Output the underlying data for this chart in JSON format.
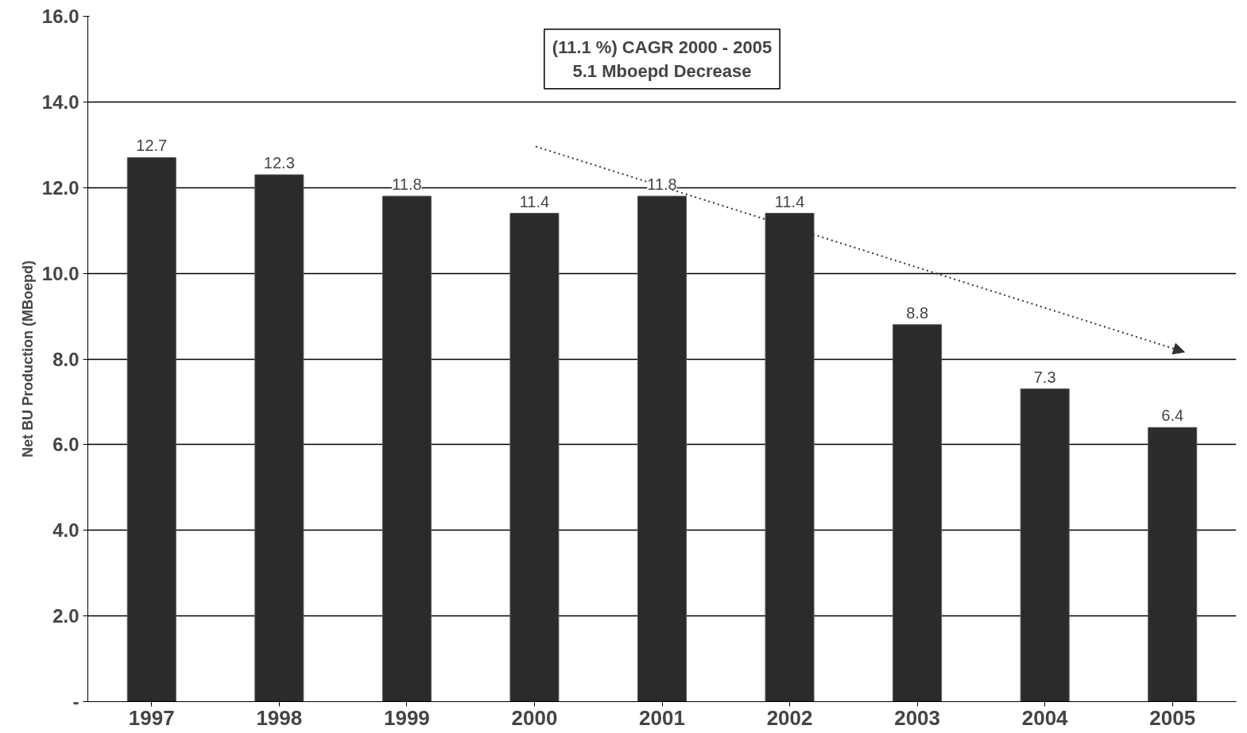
{
  "chart_data": {
    "type": "bar",
    "ylabel": "Net BU Production (MBoepd)",
    "categories": [
      "1997",
      "1998",
      "1999",
      "2000",
      "2001",
      "2002",
      "2003",
      "2004",
      "2005"
    ],
    "series": [
      {
        "color": "#2b2b2b",
        "values": [
          12.7,
          12.3,
          11.8,
          11.4,
          11.8,
          11.4,
          8.8,
          7.3,
          6.4
        ]
      }
    ],
    "annotations": [
      "(11.1 %) CAGR 2000 - 2005",
      "5.1 Mboepd Decrease"
    ],
    "ylim": [
      0,
      16
    ],
    "yticks": [
      {
        "value": 0,
        "label": "-"
      },
      {
        "value": 2,
        "label": "2.0"
      },
      {
        "value": 4,
        "label": "4.0"
      },
      {
        "value": 6,
        "label": "6.0"
      },
      {
        "value": 8,
        "label": "8.0"
      },
      {
        "value": 10,
        "label": "10.0"
      },
      {
        "value": 12,
        "label": "12.0"
      },
      {
        "value": 14,
        "label": "14.0"
      },
      {
        "value": 16,
        "label": "16.0"
      }
    ],
    "grid": "y",
    "data_labels": true
  }
}
